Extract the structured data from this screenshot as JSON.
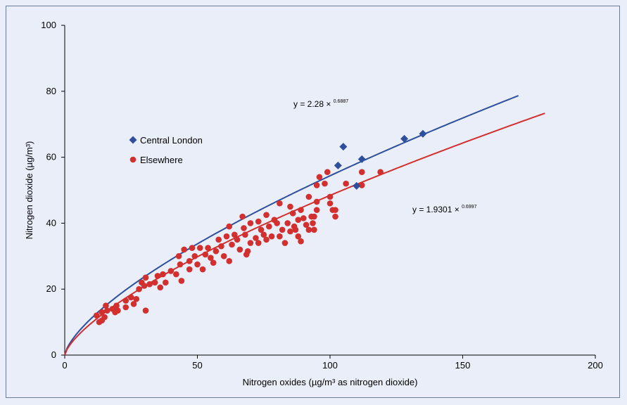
{
  "chart_data": {
    "type": "scatter",
    "xlabel": "Nitrogen oxides (µg/m³ as nitrogen dioxide)",
    "ylabel": "Nitrogen dioxide (µg/m³)",
    "xlim": [
      0,
      200
    ],
    "ylim": [
      0,
      100
    ],
    "xticks": [
      0,
      50,
      100,
      150,
      200
    ],
    "yticks": [
      0,
      20,
      40,
      60,
      80,
      100
    ],
    "grid": false,
    "legend_position": "left",
    "series": [
      {
        "name": "Central London",
        "marker": "diamond",
        "color": "#2e4f9c",
        "points": [
          [
            103,
            57.5
          ],
          [
            105,
            63.2
          ],
          [
            110,
            51.3
          ],
          [
            112,
            59.4
          ],
          [
            128,
            65.6
          ],
          [
            135,
            67.1
          ]
        ],
        "fit": {
          "equation": "y = 2.28 × ",
          "exponent": "0.6887",
          "a": 2.28,
          "b": 0.6887,
          "x_range": [
            0,
            171
          ]
        }
      },
      {
        "name": "Elsewhere",
        "marker": "circle",
        "color": "#d22f2f",
        "points": [
          [
            12,
            12
          ],
          [
            13,
            10
          ],
          [
            14,
            10.5
          ],
          [
            14,
            13
          ],
          [
            15,
            11.5
          ],
          [
            15.5,
            15
          ],
          [
            16,
            13.5
          ],
          [
            18,
            14
          ],
          [
            19,
            13
          ],
          [
            19.5,
            15
          ],
          [
            20,
            13.5
          ],
          [
            23,
            16.5
          ],
          [
            23,
            14.5
          ],
          [
            25,
            17.5
          ],
          [
            26,
            15.5
          ],
          [
            27,
            17
          ],
          [
            28,
            20
          ],
          [
            29,
            22
          ],
          [
            30,
            21
          ],
          [
            30.5,
            23.5
          ],
          [
            30.5,
            13.5
          ],
          [
            32,
            21.5
          ],
          [
            34,
            22
          ],
          [
            35,
            24
          ],
          [
            36,
            20.5
          ],
          [
            37,
            24.5
          ],
          [
            38,
            22
          ],
          [
            40,
            25.5
          ],
          [
            42,
            24.5
          ],
          [
            43,
            30
          ],
          [
            43.5,
            27.5
          ],
          [
            44,
            22.5
          ],
          [
            45,
            32
          ],
          [
            47,
            28.5
          ],
          [
            47,
            26
          ],
          [
            48,
            32.5
          ],
          [
            49,
            30
          ],
          [
            50,
            27.5
          ],
          [
            51,
            32.5
          ],
          [
            52,
            26
          ],
          [
            53,
            30.5
          ],
          [
            54,
            32.5
          ],
          [
            55,
            29.5
          ],
          [
            56,
            28
          ],
          [
            57,
            31.5
          ],
          [
            58,
            35
          ],
          [
            59,
            33
          ],
          [
            60,
            30
          ],
          [
            61,
            36
          ],
          [
            62,
            39
          ],
          [
            62,
            28.5
          ],
          [
            63,
            33.5
          ],
          [
            64,
            36.5
          ],
          [
            65,
            35
          ],
          [
            66,
            32
          ],
          [
            67,
            42
          ],
          [
            67.5,
            38.5
          ],
          [
            68,
            36.5
          ],
          [
            68.5,
            30.5
          ],
          [
            69,
            31.5
          ],
          [
            70,
            40
          ],
          [
            70,
            34
          ],
          [
            72,
            35.5
          ],
          [
            73,
            40.5
          ],
          [
            73,
            34
          ],
          [
            74,
            38
          ],
          [
            75,
            36.5
          ],
          [
            76,
            42.5
          ],
          [
            76,
            35
          ],
          [
            77,
            39
          ],
          [
            78,
            36
          ],
          [
            79,
            41
          ],
          [
            80,
            40
          ],
          [
            81,
            46
          ],
          [
            81,
            36
          ],
          [
            82,
            38
          ],
          [
            83,
            34
          ],
          [
            84,
            40
          ],
          [
            85,
            45
          ],
          [
            85,
            37.5
          ],
          [
            86,
            43
          ],
          [
            86.5,
            39
          ],
          [
            87,
            38
          ],
          [
            88,
            41
          ],
          [
            88,
            36
          ],
          [
            89,
            44
          ],
          [
            89,
            34.5
          ],
          [
            90,
            41.5
          ],
          [
            91,
            39.5
          ],
          [
            92,
            48
          ],
          [
            92,
            38
          ],
          [
            93,
            42
          ],
          [
            93.5,
            40
          ],
          [
            94,
            38
          ],
          [
            94,
            42
          ],
          [
            95,
            51.5
          ],
          [
            95,
            46.5
          ],
          [
            95,
            44
          ],
          [
            96,
            54
          ],
          [
            98,
            52
          ],
          [
            99,
            55.5
          ],
          [
            100,
            46
          ],
          [
            100,
            48
          ],
          [
            101,
            44
          ],
          [
            102,
            42
          ],
          [
            102,
            44
          ],
          [
            106,
            52
          ],
          [
            112,
            51.5
          ],
          [
            112,
            55.5
          ],
          [
            119,
            55.5
          ]
        ],
        "fit": {
          "equation": "y = 1.9301 × ",
          "exponent": "0.6997",
          "a": 1.9301,
          "b": 0.6997,
          "x_range": [
            0,
            181
          ]
        }
      }
    ]
  }
}
